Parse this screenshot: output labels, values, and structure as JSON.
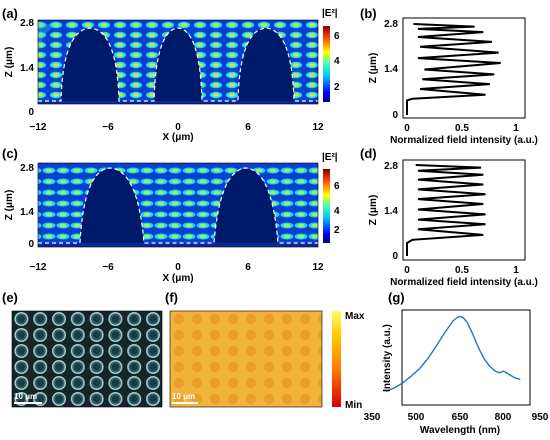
{
  "panel_labels": {
    "a": "(a)",
    "b": "(b)",
    "c": "(c)",
    "d": "(d)",
    "e": "(e)",
    "f": "(f)",
    "g": "(g)"
  },
  "colors": {
    "field_bg": "#0a2a9c",
    "wall": "#001a6b",
    "spectrum": "#1f78c8",
    "line": "#000000"
  },
  "field_maps": [
    {
      "id": "a",
      "colorbar_label": "|E²|",
      "colorbar_ticks": [
        "6",
        "4",
        "2"
      ],
      "z_ticks": [
        "2.8",
        "1.4",
        "0"
      ],
      "x_ticks": [
        "−12",
        "−6",
        "0",
        "6",
        "12"
      ],
      "xlabel": "X (μm)",
      "ylabel": "Z (μm)",
      "dome_centers_um": [
        -7.5,
        0,
        7.5
      ]
    },
    {
      "id": "c",
      "colorbar_label": "|E²|",
      "colorbar_ticks": [
        "6",
        "4",
        "2"
      ],
      "z_ticks": [
        "2.8",
        "1.4",
        "0"
      ],
      "x_ticks": [
        "−12",
        "−6",
        "0",
        "6",
        "12"
      ],
      "xlabel": "X (μm)",
      "ylabel": "Z (μm)",
      "dome_centers_um": [
        -6,
        6
      ]
    }
  ],
  "image_panels": {
    "e": {
      "scale_label": "10 μm",
      "grid": "8x6"
    },
    "f": {
      "scale_label": "10 μm",
      "colorbar_max": "Max",
      "colorbar_min": "Min"
    }
  },
  "chart_data": [
    {
      "id": "b",
      "type": "line",
      "xlabel": "Normalized field intensity (a.u.)",
      "ylabel": "Z (μm)",
      "x_ticks": [
        "0",
        "0.5",
        "1"
      ],
      "y_ticks": [
        "2.8",
        "1.4",
        "0"
      ],
      "xlim": [
        0,
        1
      ],
      "ylim": [
        0,
        2.8
      ],
      "x": [
        0,
        0,
        0.05,
        0.72,
        0.12,
        0.76,
        0.14,
        0.8,
        0.16,
        0.86,
        0.1,
        0.84,
        0.12,
        0.78,
        0.1,
        0.7,
        0.1,
        0.62,
        0.06
      ],
      "y": [
        0,
        0.45,
        0.5,
        0.62,
        0.8,
        0.95,
        1.1,
        1.25,
        1.4,
        1.6,
        1.75,
        1.92,
        2.1,
        2.25,
        2.4,
        2.55,
        2.65,
        2.72,
        2.8
      ]
    },
    {
      "id": "d",
      "type": "line",
      "xlabel": "Normalized field intensity (a.u.)",
      "ylabel": "Z (μm)",
      "x_ticks": [
        "0",
        "0.5",
        "1"
      ],
      "y_ticks": [
        "2.8",
        "1.4",
        "0"
      ],
      "xlim": [
        0,
        1
      ],
      "ylim": [
        0,
        2.8
      ],
      "x": [
        0,
        0,
        0.05,
        0.7,
        0.1,
        0.72,
        0.1,
        0.72,
        0.1,
        0.7,
        0.1,
        0.72,
        0.1,
        0.7,
        0.1,
        0.7,
        0.1,
        0.68,
        0.08
      ],
      "y": [
        0,
        0.4,
        0.5,
        0.65,
        0.82,
        0.98,
        1.12,
        1.28,
        1.43,
        1.6,
        1.75,
        1.9,
        2.05,
        2.2,
        2.35,
        2.5,
        2.62,
        2.72,
        2.8
      ]
    },
    {
      "id": "g",
      "type": "line",
      "xlabel": "Wavelength (nm)",
      "ylabel": "Intensity (a.u.)",
      "x_ticks": [
        "350",
        "500",
        "650",
        "800",
        "950"
      ],
      "xlim": [
        350,
        950
      ],
      "ylim": [
        0,
        1
      ],
      "x": [
        400,
        430,
        460,
        490,
        520,
        550,
        580,
        610,
        640,
        660,
        675,
        690,
        710,
        730,
        750,
        770,
        790,
        805,
        820,
        840,
        860,
        880
      ],
      "y": [
        0.08,
        0.12,
        0.18,
        0.26,
        0.35,
        0.47,
        0.62,
        0.78,
        0.92,
        0.97,
        0.96,
        0.9,
        0.76,
        0.6,
        0.47,
        0.38,
        0.32,
        0.3,
        0.32,
        0.28,
        0.24,
        0.22
      ]
    }
  ]
}
